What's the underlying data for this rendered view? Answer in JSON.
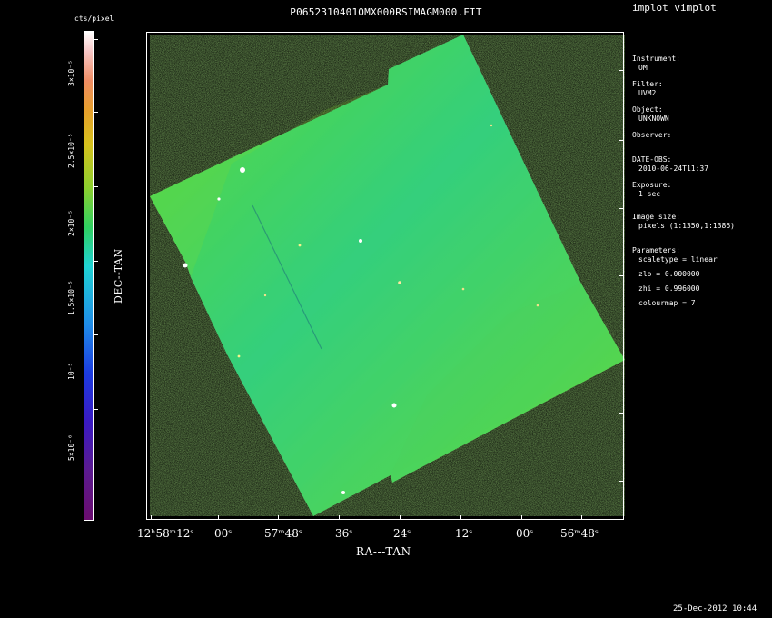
{
  "app": {
    "tool_name": "implot vimplot",
    "plot_title": "P0652310401OMX000RSIMAGM000.FIT",
    "footer_timestamp": "25-Dec-2012 10:44"
  },
  "colorbar": {
    "unit_label": "cts/pixel",
    "tick_labels": [
      "3×10⁻⁵",
      "2.5×10⁻⁵",
      "2×10⁻⁵",
      "1.5×10⁻⁵",
      "10⁻⁵",
      "5×10⁻⁶"
    ]
  },
  "axes": {
    "x_label": "RA---TAN",
    "y_label": "DEC--TAN",
    "x_tick_labels": [
      "12ʰ58ᵐ12ˢ",
      "00ˢ",
      "57ᵐ48ˢ",
      "36ˢ",
      "24ˢ",
      "12ˢ",
      "00ˢ",
      "56ᵐ48ˢ"
    ]
  },
  "info_panel": {
    "instrument_label": "Instrument:",
    "instrument_value": "OM",
    "filter_label": "Filter:",
    "filter_value": "UVM2",
    "object_label": "Object:",
    "object_value": "UNKNOWN",
    "observer_label": "Observer:",
    "date_obs_label": "DATE-OBS:",
    "date_obs_value": "2010-06-24T11:37",
    "exposure_label": "Exposure:",
    "exposure_value": "1 sec",
    "image_size_label": "Image size:",
    "image_size_value": "pixels (1:1350,1:1386)",
    "parameters_label": "Parameters:",
    "parameters": [
      "scaletype = linear",
      "zlo = 0.000000",
      "zhi = 0.996000",
      "colourmap =   7"
    ]
  }
}
